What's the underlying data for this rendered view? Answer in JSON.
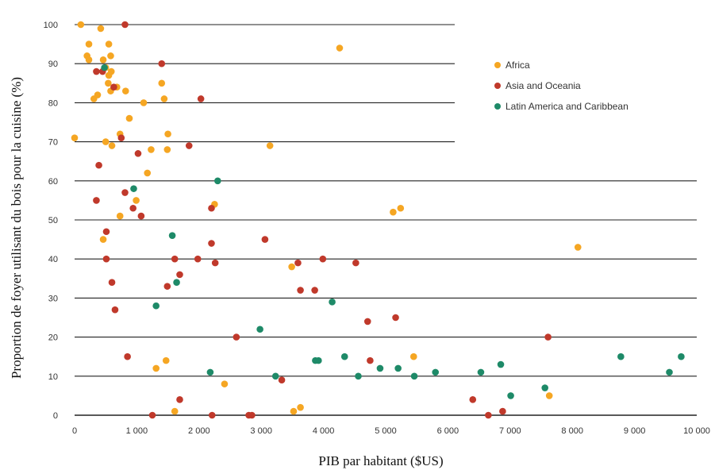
{
  "chart_data": {
    "type": "scatter",
    "xlabel": "PIB par habitant ($US)",
    "ylabel": "Proportion de foyer utilisant du bois pour la cuisine (%)",
    "xlim": [
      0,
      10000
    ],
    "ylim": [
      0,
      100
    ],
    "x_ticks": [
      "0",
      "1 000",
      "2 000",
      "3 000",
      "4 000",
      "5 000",
      "6 000",
      "7 000",
      "8 000",
      "9 000",
      "10 000"
    ],
    "y_ticks": [
      "0",
      "10",
      "20",
      "30",
      "40",
      "50",
      "60",
      "70",
      "80",
      "90",
      "100"
    ],
    "grid": "horizontal",
    "legend_position": "top-right",
    "series": [
      {
        "name": "Africa",
        "color": "#F5A623",
        "points": [
          [
            100,
            100
          ],
          [
            230,
            95
          ],
          [
            420,
            99
          ],
          [
            550,
            95
          ],
          [
            200,
            92
          ],
          [
            230,
            91
          ],
          [
            460,
            91
          ],
          [
            580,
            92
          ],
          [
            500,
            89
          ],
          [
            550,
            87
          ],
          [
            590,
            88
          ],
          [
            540,
            85
          ],
          [
            580,
            83
          ],
          [
            680,
            84
          ],
          [
            820,
            83
          ],
          [
            310,
            81
          ],
          [
            370,
            82
          ],
          [
            1110,
            80
          ],
          [
            1400,
            85
          ],
          [
            1440,
            81
          ],
          [
            880,
            76
          ],
          [
            0,
            71
          ],
          [
            500,
            70
          ],
          [
            730,
            72
          ],
          [
            600,
            69
          ],
          [
            1230,
            68
          ],
          [
            1500,
            72
          ],
          [
            1490,
            68
          ],
          [
            3140,
            69
          ],
          [
            4260,
            94
          ],
          [
            1170,
            62
          ],
          [
            990,
            55
          ],
          [
            730,
            51
          ],
          [
            460,
            45
          ],
          [
            2250,
            54
          ],
          [
            5120,
            52
          ],
          [
            5240,
            53
          ],
          [
            8090,
            43
          ],
          [
            3490,
            38
          ],
          [
            1470,
            14
          ],
          [
            1310,
            12
          ],
          [
            2410,
            8
          ],
          [
            1610,
            1
          ],
          [
            3520,
            1
          ],
          [
            3630,
            2
          ],
          [
            5450,
            15
          ],
          [
            7630,
            5
          ]
        ]
      },
      {
        "name": "Asia and Oceania",
        "color": "#C0392B",
        "points": [
          [
            810,
            100
          ],
          [
            450,
            88
          ],
          [
            350,
            88
          ],
          [
            1400,
            90
          ],
          [
            630,
            84
          ],
          [
            2030,
            81
          ],
          [
            750,
            71
          ],
          [
            1020,
            67
          ],
          [
            1840,
            69
          ],
          [
            390,
            64
          ],
          [
            350,
            55
          ],
          [
            810,
            57
          ],
          [
            940,
            53
          ],
          [
            1070,
            51
          ],
          [
            2200,
            53
          ],
          [
            510,
            47
          ],
          [
            510,
            40
          ],
          [
            2200,
            44
          ],
          [
            3060,
            45
          ],
          [
            1610,
            40
          ],
          [
            1980,
            40
          ],
          [
            2260,
            39
          ],
          [
            3590,
            39
          ],
          [
            3990,
            40
          ],
          [
            4520,
            39
          ],
          [
            600,
            34
          ],
          [
            1490,
            33
          ],
          [
            1690,
            36
          ],
          [
            3630,
            32
          ],
          [
            3860,
            32
          ],
          [
            650,
            27
          ],
          [
            4710,
            24
          ],
          [
            5160,
            25
          ],
          [
            2600,
            20
          ],
          [
            7610,
            20
          ],
          [
            850,
            15
          ],
          [
            4750,
            14
          ],
          [
            3330,
            9
          ],
          [
            1690,
            4
          ],
          [
            6400,
            4
          ],
          [
            1250,
            0
          ],
          [
            2210,
            0
          ],
          [
            2800,
            0
          ],
          [
            2850,
            0
          ],
          [
            6650,
            0
          ],
          [
            6880,
            1
          ]
        ]
      },
      {
        "name": "Latin America and Caribbean",
        "color": "#1E8A68",
        "points": [
          [
            480,
            89
          ],
          [
            950,
            58
          ],
          [
            2300,
            60
          ],
          [
            1570,
            46
          ],
          [
            1640,
            34
          ],
          [
            1310,
            28
          ],
          [
            4140,
            29
          ],
          [
            2980,
            22
          ],
          [
            3870,
            14
          ],
          [
            3920,
            14
          ],
          [
            4340,
            15
          ],
          [
            4560,
            10
          ],
          [
            4910,
            12
          ],
          [
            5200,
            12
          ],
          [
            5460,
            10
          ],
          [
            5800,
            11
          ],
          [
            2180,
            11
          ],
          [
            3230,
            10
          ],
          [
            6530,
            11
          ],
          [
            6850,
            13
          ],
          [
            7010,
            5
          ],
          [
            7560,
            7
          ],
          [
            8780,
            15
          ],
          [
            9560,
            11
          ],
          [
            9750,
            15
          ]
        ]
      }
    ]
  }
}
